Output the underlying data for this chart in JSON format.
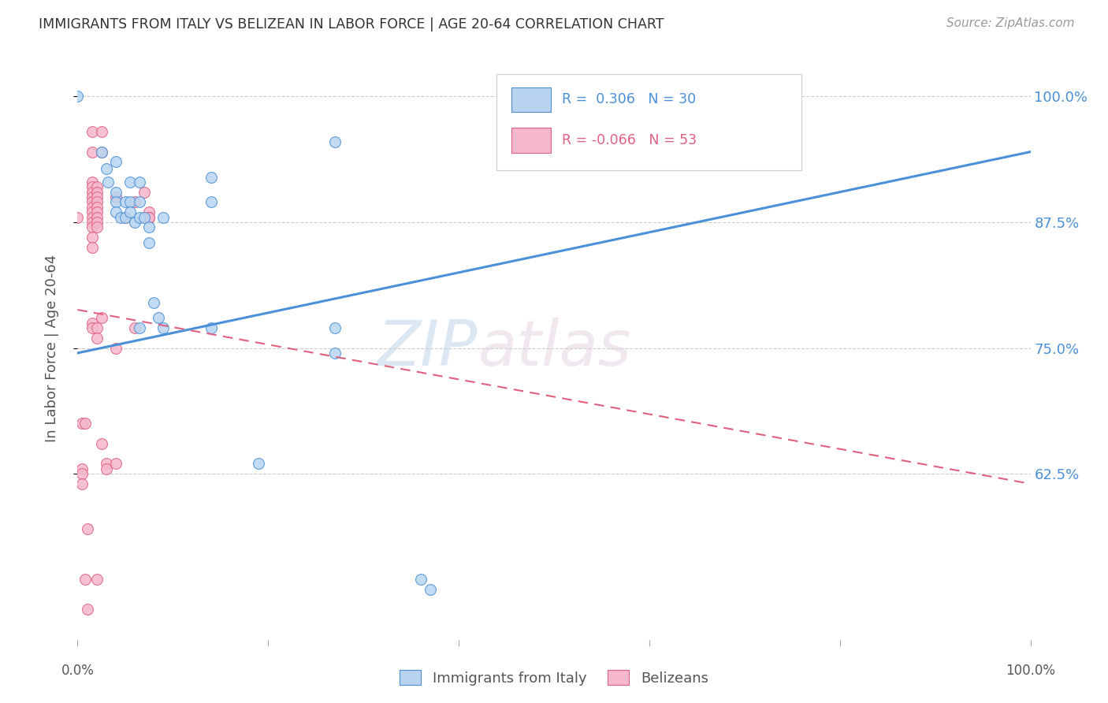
{
  "title": "IMMIGRANTS FROM ITALY VS BELIZEAN IN LABOR FORCE | AGE 20-64 CORRELATION CHART",
  "source": "Source: ZipAtlas.com",
  "ylabel": "In Labor Force | Age 20-64",
  "ytick_labels": [
    "62.5%",
    "75.0%",
    "87.5%",
    "100.0%"
  ],
  "ytick_values": [
    0.625,
    0.75,
    0.875,
    1.0
  ],
  "xlim": [
    0.0,
    1.0
  ],
  "ylim": [
    0.46,
    1.04
  ],
  "italy_color": "#b8d4f0",
  "italy_line_color": "#4a90d9",
  "belizean_color": "#f5b8cc",
  "belizean_line_color": "#e06080",
  "watermark_zip": "ZIP",
  "watermark_atlas": "atlas",
  "bottom_legend": [
    "Immigrants from Italy",
    "Belizeans"
  ],
  "italy_line": [
    [
      0.0,
      0.745
    ],
    [
      1.0,
      0.945
    ]
  ],
  "belizean_line": [
    [
      0.0,
      0.788
    ],
    [
      1.0,
      0.615
    ]
  ],
  "italy_scatter": [
    [
      0.0,
      1.0
    ],
    [
      0.025,
      0.945
    ],
    [
      0.03,
      0.928
    ],
    [
      0.032,
      0.915
    ],
    [
      0.04,
      0.935
    ],
    [
      0.04,
      0.905
    ],
    [
      0.04,
      0.895
    ],
    [
      0.04,
      0.885
    ],
    [
      0.045,
      0.88
    ],
    [
      0.05,
      0.895
    ],
    [
      0.05,
      0.88
    ],
    [
      0.055,
      0.915
    ],
    [
      0.055,
      0.895
    ],
    [
      0.055,
      0.885
    ],
    [
      0.06,
      0.875
    ],
    [
      0.065,
      0.915
    ],
    [
      0.065,
      0.895
    ],
    [
      0.065,
      0.88
    ],
    [
      0.065,
      0.77
    ],
    [
      0.07,
      0.88
    ],
    [
      0.075,
      0.87
    ],
    [
      0.075,
      0.855
    ],
    [
      0.08,
      0.795
    ],
    [
      0.085,
      0.78
    ],
    [
      0.09,
      0.88
    ],
    [
      0.09,
      0.77
    ],
    [
      0.14,
      0.92
    ],
    [
      0.14,
      0.895
    ],
    [
      0.14,
      0.77
    ],
    [
      0.19,
      0.635
    ],
    [
      0.27,
      0.955
    ],
    [
      0.27,
      0.77
    ],
    [
      0.27,
      0.745
    ],
    [
      0.36,
      0.52
    ],
    [
      0.37,
      0.51
    ]
  ],
  "belizean_scatter": [
    [
      0.0,
      0.88
    ],
    [
      0.01,
      0.57
    ],
    [
      0.015,
      0.965
    ],
    [
      0.015,
      0.945
    ],
    [
      0.015,
      0.915
    ],
    [
      0.015,
      0.91
    ],
    [
      0.015,
      0.905
    ],
    [
      0.015,
      0.9
    ],
    [
      0.015,
      0.895
    ],
    [
      0.015,
      0.89
    ],
    [
      0.015,
      0.885
    ],
    [
      0.015,
      0.88
    ],
    [
      0.015,
      0.875
    ],
    [
      0.015,
      0.87
    ],
    [
      0.015,
      0.86
    ],
    [
      0.015,
      0.85
    ],
    [
      0.015,
      0.775
    ],
    [
      0.015,
      0.77
    ],
    [
      0.02,
      0.91
    ],
    [
      0.02,
      0.905
    ],
    [
      0.02,
      0.9
    ],
    [
      0.02,
      0.895
    ],
    [
      0.02,
      0.89
    ],
    [
      0.02,
      0.885
    ],
    [
      0.02,
      0.88
    ],
    [
      0.02,
      0.875
    ],
    [
      0.02,
      0.87
    ],
    [
      0.02,
      0.77
    ],
    [
      0.02,
      0.76
    ],
    [
      0.025,
      0.965
    ],
    [
      0.025,
      0.945
    ],
    [
      0.025,
      0.78
    ],
    [
      0.025,
      0.655
    ],
    [
      0.03,
      0.635
    ],
    [
      0.03,
      0.63
    ],
    [
      0.04,
      0.9
    ],
    [
      0.04,
      0.75
    ],
    [
      0.04,
      0.635
    ],
    [
      0.05,
      0.88
    ],
    [
      0.06,
      0.895
    ],
    [
      0.06,
      0.77
    ],
    [
      0.07,
      0.905
    ],
    [
      0.075,
      0.885
    ],
    [
      0.075,
      0.88
    ],
    [
      0.075,
      0.88
    ],
    [
      0.01,
      0.49
    ],
    [
      0.005,
      0.63
    ],
    [
      0.005,
      0.625
    ],
    [
      0.005,
      0.615
    ],
    [
      0.005,
      0.675
    ],
    [
      0.008,
      0.675
    ],
    [
      0.008,
      0.52
    ],
    [
      0.02,
      0.52
    ]
  ]
}
